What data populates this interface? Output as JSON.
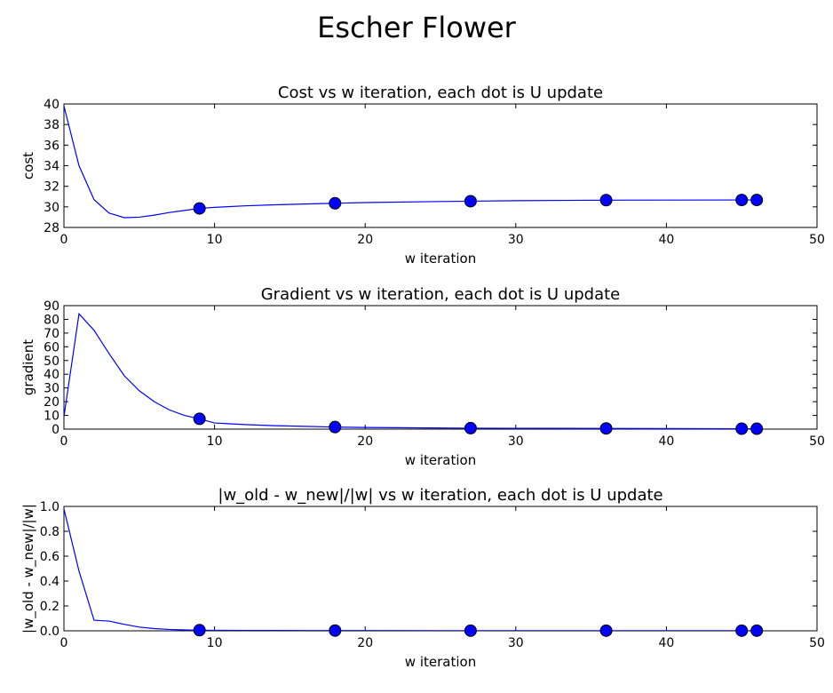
{
  "figure": {
    "title": "Escher Flower"
  },
  "colors": {
    "line": "#0000ff",
    "marker": "#0000ff",
    "marker_edge": "#000000",
    "axis": "#000000",
    "background": "#ffffff"
  },
  "chart_data": [
    {
      "type": "line",
      "title": "Cost vs w iteration, each dot is U update",
      "xlabel": "w iteration",
      "ylabel": "cost",
      "xlim": [
        0,
        50
      ],
      "ylim": [
        28,
        40
      ],
      "xticks": [
        0,
        10,
        20,
        30,
        40,
        50
      ],
      "yticks": [
        28,
        30,
        32,
        34,
        36,
        38,
        40
      ],
      "grid": false,
      "series": [
        {
          "style": "line",
          "x": [
            0,
            1,
            2,
            3,
            4,
            5,
            6,
            7,
            8,
            9,
            10,
            12,
            14,
            16,
            18,
            20,
            25,
            27,
            30,
            36,
            40,
            45,
            46
          ],
          "y": [
            39.8,
            34.0,
            30.7,
            29.4,
            28.95,
            29.0,
            29.2,
            29.45,
            29.65,
            29.85,
            29.95,
            30.1,
            30.2,
            30.28,
            30.35,
            30.42,
            30.52,
            30.55,
            30.6,
            30.65,
            30.66,
            30.67,
            30.67
          ]
        },
        {
          "style": "markers",
          "x": [
            9,
            18,
            27,
            36,
            45,
            46
          ],
          "y": [
            29.85,
            30.35,
            30.55,
            30.65,
            30.67,
            30.67
          ]
        }
      ]
    },
    {
      "type": "line",
      "title": "Gradient vs w iteration, each dot is U update",
      "xlabel": "w iteration",
      "ylabel": "gradient",
      "xlim": [
        0,
        50
      ],
      "ylim": [
        0,
        90
      ],
      "xticks": [
        0,
        10,
        20,
        30,
        40,
        50
      ],
      "yticks": [
        0,
        10,
        20,
        30,
        40,
        50,
        60,
        70,
        80,
        90
      ],
      "grid": false,
      "series": [
        {
          "style": "line",
          "x": [
            0,
            1,
            2,
            3,
            4,
            5,
            6,
            7,
            8,
            9,
            10,
            12,
            14,
            16,
            18,
            20,
            25,
            27,
            30,
            36,
            40,
            45,
            46
          ],
          "y": [
            9,
            84,
            72,
            55,
            39,
            28,
            20,
            14,
            10,
            7.5,
            4.5,
            3.3,
            2.5,
            2.0,
            1.5,
            1.2,
            0.8,
            0.7,
            0.6,
            0.5,
            0.4,
            0.3,
            0.3
          ]
        },
        {
          "style": "markers",
          "x": [
            9,
            18,
            27,
            36,
            45,
            46
          ],
          "y": [
            7.5,
            1.5,
            0.7,
            0.5,
            0.3,
            0.3
          ]
        }
      ]
    },
    {
      "type": "line",
      "title": "|w_old - w_new|/|w| vs w iteration, each dot is U update",
      "xlabel": "w iteration",
      "ylabel": "|w_old - w_new|/|w|",
      "xlim": [
        0,
        50
      ],
      "ylim": [
        0.0,
        1.0
      ],
      "xticks": [
        0,
        10,
        20,
        30,
        40,
        50
      ],
      "yticks": [
        0.0,
        0.2,
        0.4,
        0.6,
        0.8,
        1.0
      ],
      "grid": false,
      "series": [
        {
          "style": "line",
          "x": [
            0,
            1,
            2,
            3,
            4,
            5,
            6,
            7,
            8,
            9,
            10,
            12,
            14,
            16,
            18,
            20,
            25,
            27,
            30,
            36,
            40,
            45,
            46
          ],
          "y": [
            0.98,
            0.48,
            0.085,
            0.078,
            0.052,
            0.03,
            0.018,
            0.011,
            0.007,
            0.005,
            0.004,
            0.003,
            0.003,
            0.002,
            0.002,
            0.002,
            0.001,
            0.001,
            0.001,
            0.001,
            0.001,
            0.001,
            0.001
          ]
        },
        {
          "style": "markers",
          "x": [
            9,
            18,
            27,
            36,
            45,
            46
          ],
          "y": [
            0.005,
            0.002,
            0.001,
            0.001,
            0.001,
            0.001
          ]
        }
      ]
    }
  ]
}
